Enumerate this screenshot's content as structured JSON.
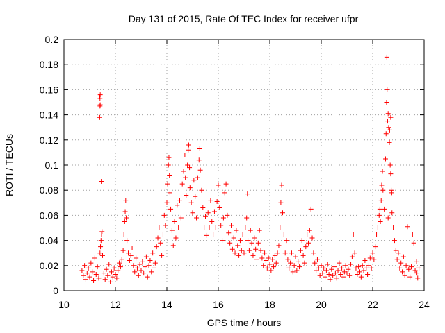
{
  "chart_data": {
    "type": "scatter",
    "title": "Day 131 of 2015, Rate Of TEC Index for receiver ufpr",
    "xlabel": "GPS time / hours",
    "ylabel": "ROTI / TECUs",
    "xlim": [
      10,
      24
    ],
    "ylim": [
      0,
      0.2
    ],
    "xticks": [
      10,
      12,
      14,
      16,
      18,
      20,
      22,
      24
    ],
    "xtick_labels": [
      "10",
      "12",
      "14",
      "16",
      "18",
      "20",
      "22",
      "24"
    ],
    "yticks": [
      0,
      0.02,
      0.04,
      0.06,
      0.08,
      0.1,
      0.12,
      0.14,
      0.16,
      0.18,
      0.2
    ],
    "ytick_labels": [
      "0",
      "0.02",
      "0.04",
      "0.06",
      "0.08",
      "0.1",
      "0.12",
      "0.14",
      "0.16",
      "0.18",
      "0.2"
    ],
    "grid": true,
    "marker": "+",
    "color": "#ff0000",
    "series": [
      {
        "name": "ROTI",
        "points": [
          [
            10.7,
            0.016
          ],
          [
            10.75,
            0.012
          ],
          [
            10.8,
            0.02
          ],
          [
            10.85,
            0.009
          ],
          [
            10.9,
            0.014
          ],
          [
            10.95,
            0.018
          ],
          [
            11.0,
            0.011
          ],
          [
            11.05,
            0.022
          ],
          [
            11.1,
            0.015
          ],
          [
            11.15,
            0.008
          ],
          [
            11.2,
            0.026
          ],
          [
            11.25,
            0.013
          ],
          [
            11.3,
            0.019
          ],
          [
            11.35,
            0.01
          ],
          [
            11.4,
            0.03
          ],
          [
            11.42,
            0.035
          ],
          [
            11.44,
            0.04
          ],
          [
            11.46,
            0.045
          ],
          [
            11.48,
            0.047
          ],
          [
            11.5,
            0.028
          ],
          [
            11.55,
            0.014
          ],
          [
            11.6,
            0.009
          ],
          [
            11.65,
            0.017
          ],
          [
            11.7,
            0.012
          ],
          [
            11.75,
            0.021
          ],
          [
            11.8,
            0.007
          ],
          [
            11.85,
            0.015
          ],
          [
            11.9,
            0.011
          ],
          [
            11.95,
            0.018
          ],
          [
            12.0,
            0.013
          ],
          [
            11.39,
            0.155
          ],
          [
            11.4,
            0.153
          ],
          [
            11.41,
            0.156
          ],
          [
            11.4,
            0.147
          ],
          [
            11.41,
            0.148
          ],
          [
            11.39,
            0.138
          ],
          [
            11.45,
            0.087
          ],
          [
            12.05,
            0.01
          ],
          [
            12.1,
            0.016
          ],
          [
            12.15,
            0.022
          ],
          [
            12.2,
            0.019
          ],
          [
            12.25,
            0.025
          ],
          [
            12.3,
            0.032
          ],
          [
            12.33,
            0.045
          ],
          [
            12.36,
            0.055
          ],
          [
            12.38,
            0.063
          ],
          [
            12.4,
            0.072
          ],
          [
            12.42,
            0.058
          ],
          [
            12.45,
            0.04
          ],
          [
            12.5,
            0.03
          ],
          [
            12.55,
            0.024
          ],
          [
            12.6,
            0.028
          ],
          [
            12.65,
            0.034
          ],
          [
            12.7,
            0.02
          ],
          [
            12.75,
            0.015
          ],
          [
            12.8,
            0.026
          ],
          [
            12.85,
            0.018
          ],
          [
            12.9,
            0.012
          ],
          [
            12.95,
            0.021
          ],
          [
            13.0,
            0.016
          ],
          [
            13.05,
            0.023
          ],
          [
            13.1,
            0.014
          ],
          [
            13.15,
            0.019
          ],
          [
            13.2,
            0.027
          ],
          [
            13.25,
            0.011
          ],
          [
            13.3,
            0.02
          ],
          [
            13.35,
            0.024
          ],
          [
            13.4,
            0.015
          ],
          [
            13.45,
            0.03
          ],
          [
            13.5,
            0.018
          ],
          [
            13.55,
            0.022
          ],
          [
            13.6,
            0.035
          ],
          [
            13.65,
            0.042
          ],
          [
            13.7,
            0.05
          ],
          [
            13.75,
            0.038
          ],
          [
            13.8,
            0.028
          ],
          [
            13.85,
            0.045
          ],
          [
            13.9,
            0.06
          ],
          [
            13.95,
            0.052
          ],
          [
            14.0,
            0.07
          ],
          [
            14.03,
            0.085
          ],
          [
            14.06,
            0.1
          ],
          [
            14.08,
            0.106
          ],
          [
            14.1,
            0.092
          ],
          [
            14.12,
            0.078
          ],
          [
            14.15,
            0.065
          ],
          [
            14.2,
            0.048
          ],
          [
            14.25,
            0.036
          ],
          [
            14.3,
            0.055
          ],
          [
            14.35,
            0.042
          ],
          [
            14.4,
            0.068
          ],
          [
            14.45,
            0.05
          ],
          [
            14.5,
            0.072
          ],
          [
            14.55,
            0.058
          ],
          [
            14.6,
            0.085
          ],
          [
            14.65,
            0.095
          ],
          [
            14.7,
            0.108
          ],
          [
            14.72,
            0.09
          ],
          [
            14.75,
            0.076
          ],
          [
            14.8,
            0.1
          ],
          [
            14.83,
            0.112
          ],
          [
            14.85,
            0.116
          ],
          [
            14.88,
            0.098
          ],
          [
            14.9,
            0.082
          ],
          [
            14.95,
            0.07
          ],
          [
            15.0,
            0.062
          ],
          [
            15.05,
            0.088
          ],
          [
            15.1,
            0.075
          ],
          [
            15.15,
            0.058
          ],
          [
            15.2,
            0.09
          ],
          [
            15.25,
            0.104
          ],
          [
            15.28,
            0.113
          ],
          [
            15.3,
            0.096
          ],
          [
            15.35,
            0.08
          ],
          [
            15.4,
            0.066
          ],
          [
            15.45,
            0.05
          ],
          [
            15.5,
            0.059
          ],
          [
            15.55,
            0.044
          ],
          [
            15.6,
            0.062
          ],
          [
            15.65,
            0.05
          ],
          [
            15.7,
            0.072
          ],
          [
            15.75,
            0.055
          ],
          [
            15.8,
            0.045
          ],
          [
            15.85,
            0.063
          ],
          [
            15.9,
            0.05
          ],
          [
            15.95,
            0.071
          ],
          [
            16.0,
            0.084
          ],
          [
            16.05,
            0.066
          ],
          [
            16.1,
            0.052
          ],
          [
            16.15,
            0.04
          ],
          [
            16.2,
            0.058
          ],
          [
            16.25,
            0.078
          ],
          [
            16.3,
            0.085
          ],
          [
            16.35,
            0.06
          ],
          [
            16.4,
            0.046
          ],
          [
            16.45,
            0.038
          ],
          [
            16.5,
            0.052
          ],
          [
            16.55,
            0.033
          ],
          [
            16.6,
            0.042
          ],
          [
            16.65,
            0.03
          ],
          [
            16.7,
            0.048
          ],
          [
            16.75,
            0.036
          ],
          [
            16.8,
            0.028
          ],
          [
            16.85,
            0.04
          ],
          [
            16.9,
            0.032
          ],
          [
            16.95,
            0.045
          ],
          [
            17.0,
            0.03
          ],
          [
            17.05,
            0.05
          ],
          [
            17.1,
            0.058
          ],
          [
            17.13,
            0.077
          ],
          [
            17.15,
            0.04
          ],
          [
            17.2,
            0.032
          ],
          [
            17.25,
            0.048
          ],
          [
            17.3,
            0.038
          ],
          [
            17.35,
            0.028
          ],
          [
            17.4,
            0.042
          ],
          [
            17.45,
            0.033
          ],
          [
            17.5,
            0.025
          ],
          [
            17.55,
            0.038
          ],
          [
            17.6,
            0.048
          ],
          [
            17.65,
            0.032
          ],
          [
            17.7,
            0.026
          ],
          [
            17.75,
            0.02
          ],
          [
            17.8,
            0.03
          ],
          [
            17.85,
            0.024
          ],
          [
            17.9,
            0.018
          ],
          [
            17.95,
            0.026
          ],
          [
            18.0,
            0.021
          ],
          [
            18.05,
            0.016
          ],
          [
            18.1,
            0.025
          ],
          [
            18.15,
            0.019
          ],
          [
            18.2,
            0.028
          ],
          [
            18.25,
            0.022
          ],
          [
            18.3,
            0.03
          ],
          [
            18.35,
            0.036
          ],
          [
            18.4,
            0.05
          ],
          [
            18.43,
            0.07
          ],
          [
            18.46,
            0.084
          ],
          [
            18.5,
            0.062
          ],
          [
            18.55,
            0.045
          ],
          [
            18.6,
            0.03
          ],
          [
            18.65,
            0.04
          ],
          [
            18.7,
            0.025
          ],
          [
            18.75,
            0.018
          ],
          [
            18.8,
            0.022
          ],
          [
            18.85,
            0.03
          ],
          [
            18.9,
            0.015
          ],
          [
            18.95,
            0.02
          ],
          [
            19.0,
            0.027
          ],
          [
            19.05,
            0.016
          ],
          [
            19.1,
            0.023
          ],
          [
            19.15,
            0.019
          ],
          [
            19.2,
            0.032
          ],
          [
            19.25,
            0.04
          ],
          [
            19.3,
            0.028
          ],
          [
            19.35,
            0.022
          ],
          [
            19.4,
            0.035
          ],
          [
            19.45,
            0.045
          ],
          [
            19.5,
            0.038
          ],
          [
            19.55,
            0.048
          ],
          [
            19.6,
            0.065
          ],
          [
            19.65,
            0.042
          ],
          [
            19.7,
            0.03
          ],
          [
            19.75,
            0.022
          ],
          [
            19.8,
            0.016
          ],
          [
            19.85,
            0.025
          ],
          [
            19.9,
            0.018
          ],
          [
            19.95,
            0.012
          ],
          [
            20.0,
            0.02
          ],
          [
            20.05,
            0.014
          ],
          [
            20.1,
            0.018
          ],
          [
            20.15,
            0.011
          ],
          [
            20.2,
            0.016
          ],
          [
            20.25,
            0.021
          ],
          [
            20.3,
            0.013
          ],
          [
            20.35,
            0.009
          ],
          [
            20.4,
            0.017
          ],
          [
            20.45,
            0.012
          ],
          [
            20.5,
            0.019
          ],
          [
            20.55,
            0.014
          ],
          [
            20.6,
            0.01
          ],
          [
            20.65,
            0.016
          ],
          [
            20.7,
            0.022
          ],
          [
            20.75,
            0.013
          ],
          [
            20.8,
            0.018
          ],
          [
            20.85,
            0.011
          ],
          [
            20.9,
            0.015
          ],
          [
            20.95,
            0.02
          ],
          [
            21.0,
            0.014
          ],
          [
            21.05,
            0.017
          ],
          [
            21.1,
            0.012
          ],
          [
            21.15,
            0.021
          ],
          [
            21.2,
            0.027
          ],
          [
            21.25,
            0.045
          ],
          [
            21.3,
            0.03
          ],
          [
            21.35,
            0.018
          ],
          [
            21.4,
            0.013
          ],
          [
            21.45,
            0.019
          ],
          [
            21.5,
            0.015
          ],
          [
            21.55,
            0.011
          ],
          [
            21.6,
            0.02
          ],
          [
            21.65,
            0.016
          ],
          [
            21.7,
            0.024
          ],
          [
            21.75,
            0.018
          ],
          [
            21.8,
            0.013
          ],
          [
            21.85,
            0.02
          ],
          [
            21.9,
            0.026
          ],
          [
            21.95,
            0.018
          ],
          [
            22.0,
            0.03
          ],
          [
            22.05,
            0.025
          ],
          [
            22.1,
            0.035
          ],
          [
            22.15,
            0.045
          ],
          [
            22.2,
            0.05
          ],
          [
            22.25,
            0.06
          ],
          [
            22.28,
            0.065
          ],
          [
            22.3,
            0.055
          ],
          [
            22.33,
            0.072
          ],
          [
            22.35,
            0.084
          ],
          [
            22.38,
            0.095
          ],
          [
            22.4,
            0.08
          ],
          [
            22.45,
            0.065
          ],
          [
            22.5,
            0.105
          ],
          [
            22.52,
            0.125
          ],
          [
            22.54,
            0.15
          ],
          [
            22.56,
            0.16
          ],
          [
            22.55,
            0.186
          ],
          [
            22.58,
            0.135
          ],
          [
            22.6,
            0.141
          ],
          [
            22.62,
            0.13
          ],
          [
            22.65,
            0.118
          ],
          [
            22.68,
            0.1
          ],
          [
            22.7,
            0.093
          ],
          [
            22.72,
            0.08
          ],
          [
            22.75,
            0.062
          ],
          [
            22.8,
            0.05
          ],
          [
            22.85,
            0.04
          ],
          [
            22.9,
            0.032
          ],
          [
            22.95,
            0.025
          ],
          [
            23.0,
            0.03
          ],
          [
            23.05,
            0.018
          ],
          [
            23.1,
            0.022
          ],
          [
            23.15,
            0.015
          ],
          [
            23.2,
            0.027
          ],
          [
            23.25,
            0.012
          ],
          [
            23.3,
            0.02
          ],
          [
            23.35,
            0.051
          ],
          [
            23.4,
            0.017
          ],
          [
            23.45,
            0.011
          ],
          [
            23.5,
            0.019
          ],
          [
            23.55,
            0.045
          ],
          [
            23.6,
            0.038
          ],
          [
            23.65,
            0.016
          ],
          [
            23.7,
            0.023
          ],
          [
            23.72,
            0.014
          ],
          [
            23.75,
            0.01
          ],
          [
            23.8,
            0.018
          ],
          [
            22.7,
            0.138
          ],
          [
            22.66,
            0.128
          ],
          [
            22.74,
            0.078
          ],
          [
            22.6,
            0.058
          ]
        ]
      }
    ]
  }
}
